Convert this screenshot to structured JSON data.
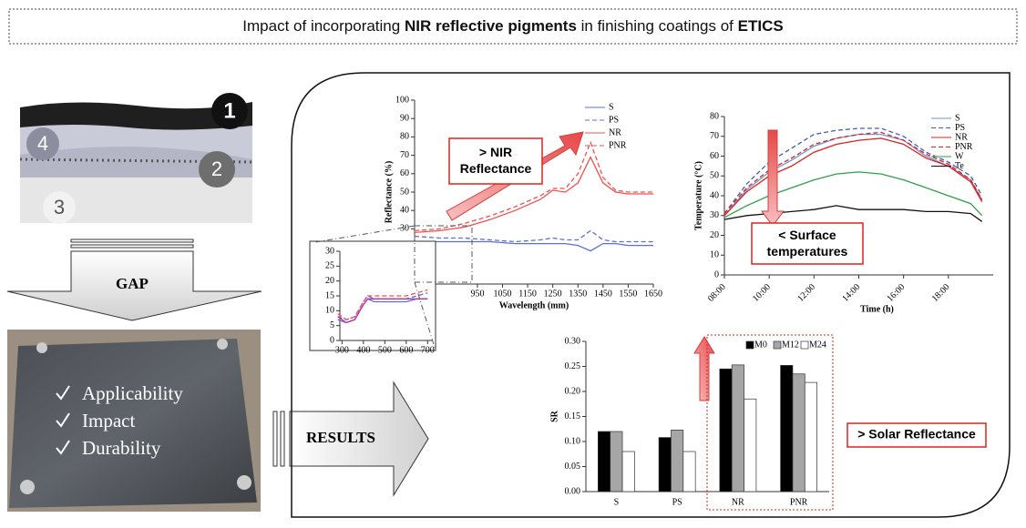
{
  "title_parts": [
    "Impact of incorporating ",
    "NIR reflective pigments",
    " in finishing coatings of ",
    "ETICS"
  ],
  "layer_numbers": [
    "1",
    "2",
    "3",
    "4"
  ],
  "gap_label": "GAP",
  "checklist": [
    "Applicability",
    "Impact",
    "Durability"
  ],
  "results_label": "RESULTS",
  "callouts": [
    "> NIR Reflectance",
    "< Surface temperatures",
    "> Solar Reflectance"
  ],
  "chart_data": [
    {
      "type": "line",
      "xlabel": "Wavelength (mm)",
      "ylabel": "Reflectance (%)",
      "x": [
        700,
        800,
        900,
        1000,
        1100,
        1200,
        1250,
        1300,
        1350,
        1400,
        1450,
        1500,
        1550,
        1600,
        1650
      ],
      "xlim": [
        700,
        1650
      ],
      "xticks": [
        950,
        1050,
        1150,
        1250,
        1350,
        1450,
        1550,
        1650
      ],
      "ylim": [
        0,
        100
      ],
      "yticks": [
        0,
        10,
        20,
        30,
        40,
        50,
        60,
        70,
        80,
        90,
        100
      ],
      "series": [
        {
          "name": "S",
          "color": "#5b6ee1",
          "dash": false,
          "values": [
            23,
            23,
            23,
            23,
            22,
            22,
            22,
            22,
            21,
            18,
            22,
            22,
            21,
            21,
            21
          ]
        },
        {
          "name": "PS",
          "color": "#5b6ee1",
          "dash": true,
          "values": [
            26,
            25,
            25,
            24,
            23,
            24,
            25,
            24,
            24,
            29,
            24,
            23,
            23,
            23,
            23
          ]
        },
        {
          "name": "NR",
          "color": "#f05050",
          "dash": false,
          "values": [
            28,
            29,
            31,
            35,
            40,
            46,
            51,
            50,
            55,
            69,
            55,
            50,
            49,
            49,
            49
          ]
        },
        {
          "name": "PNR",
          "color": "#f05050",
          "dash": true,
          "values": [
            29,
            30,
            33,
            37,
            42,
            48,
            52,
            52,
            60,
            77,
            58,
            51,
            50,
            50,
            50
          ]
        }
      ]
    },
    {
      "type": "line",
      "x": [
        280,
        320,
        360,
        400,
        420,
        450,
        500,
        550,
        600,
        650,
        700
      ],
      "xlim": [
        290,
        720
      ],
      "xticks": [
        300,
        400,
        500,
        600,
        700
      ],
      "ylim": [
        0,
        30
      ],
      "yticks": [
        0,
        5,
        10,
        15,
        20,
        25,
        30
      ],
      "series": [
        {
          "color": "#5b6ee1",
          "dash": false,
          "values": [
            7,
            6,
            7,
            12,
            14,
            13,
            13,
            13,
            13,
            14,
            14
          ]
        },
        {
          "color": "#5b6ee1",
          "dash": true,
          "values": [
            8,
            7,
            8,
            13,
            15,
            14,
            14,
            14,
            14,
            15,
            16
          ]
        },
        {
          "color": "#c0309a",
          "dash": false,
          "values": [
            8,
            6,
            7,
            12,
            14,
            14,
            14,
            14,
            14,
            14,
            14
          ]
        },
        {
          "color": "#f05050",
          "dash": true,
          "values": [
            9,
            7,
            8,
            13,
            15,
            15,
            15,
            15,
            15,
            16,
            17
          ]
        }
      ]
    },
    {
      "type": "line",
      "xlabel": "Time (h)",
      "ylabel": "Temperature (°C)",
      "x": [
        8,
        9,
        10,
        11,
        12,
        13,
        14,
        15,
        16,
        17,
        18,
        19,
        19.5
      ],
      "xlim": [
        8,
        20
      ],
      "xticks": [
        {
          "value": 8,
          "label": "08:00"
        },
        {
          "value": 10,
          "label": "10:00"
        },
        {
          "value": 12,
          "label": "12:00"
        },
        {
          "value": 14,
          "label": "14:00"
        },
        {
          "value": 16,
          "label": "16:00"
        },
        {
          "value": 18,
          "label": "18:00"
        }
      ],
      "ylim": [
        0,
        80
      ],
      "yticks": [
        0,
        10,
        20,
        30,
        40,
        50,
        60,
        70,
        80
      ],
      "series": [
        {
          "name": "S",
          "color": "#6a9ad8",
          "dash": false,
          "values": [
            30,
            43,
            52,
            58,
            65,
            69,
            71,
            71,
            68,
            60,
            55,
            48,
            38
          ]
        },
        {
          "name": "PS",
          "color": "#3e5fb8",
          "dash": true,
          "values": [
            31,
            46,
            57,
            64,
            71,
            73,
            74,
            74,
            70,
            62,
            57,
            50,
            40
          ]
        },
        {
          "name": "NR",
          "color": "#e02020",
          "dash": false,
          "values": [
            30,
            42,
            50,
            55,
            62,
            66,
            68,
            69,
            66,
            59,
            55,
            47,
            37
          ]
        },
        {
          "name": "PNR",
          "color": "#e02020",
          "dash": true,
          "values": [
            31,
            44,
            53,
            59,
            66,
            69,
            71,
            72,
            68,
            61,
            56,
            48,
            38
          ]
        },
        {
          "name": "W",
          "color": "#2fa04a",
          "dash": false,
          "values": [
            29,
            35,
            40,
            44,
            48,
            51,
            52,
            51,
            48,
            44,
            40,
            36,
            30
          ]
        },
        {
          "name": "Te",
          "color": "#111111",
          "dash": false,
          "values": [
            28,
            30,
            31,
            32,
            33,
            35,
            33,
            33,
            33,
            32,
            32,
            31,
            27
          ]
        }
      ]
    },
    {
      "type": "bar",
      "ylabel": "SR",
      "categories": [
        "S",
        "PS",
        "NR",
        "PNR"
      ],
      "ylim": [
        0,
        0.3
      ],
      "yticks": [
        {
          "value": 0,
          "label": "0.00"
        },
        {
          "value": 0.05,
          "label": "0.05"
        },
        {
          "value": 0.1,
          "label": "0.10"
        },
        {
          "value": 0.15,
          "label": "0.15"
        },
        {
          "value": 0.2,
          "label": "0.20"
        },
        {
          "value": 0.25,
          "label": "0.25"
        },
        {
          "value": 0.3,
          "label": "0.30"
        }
      ],
      "series": [
        {
          "name": "M0",
          "color": "#000000",
          "values": [
            0.12,
            0.108,
            0.245,
            0.252
          ]
        },
        {
          "name": "M12",
          "color": "#a6a6a6",
          "values": [
            0.12,
            0.123,
            0.253,
            0.235
          ]
        },
        {
          "name": "M24",
          "color": "#ffffff",
          "values": [
            0.08,
            0.08,
            0.185,
            0.218
          ]
        }
      ]
    }
  ]
}
